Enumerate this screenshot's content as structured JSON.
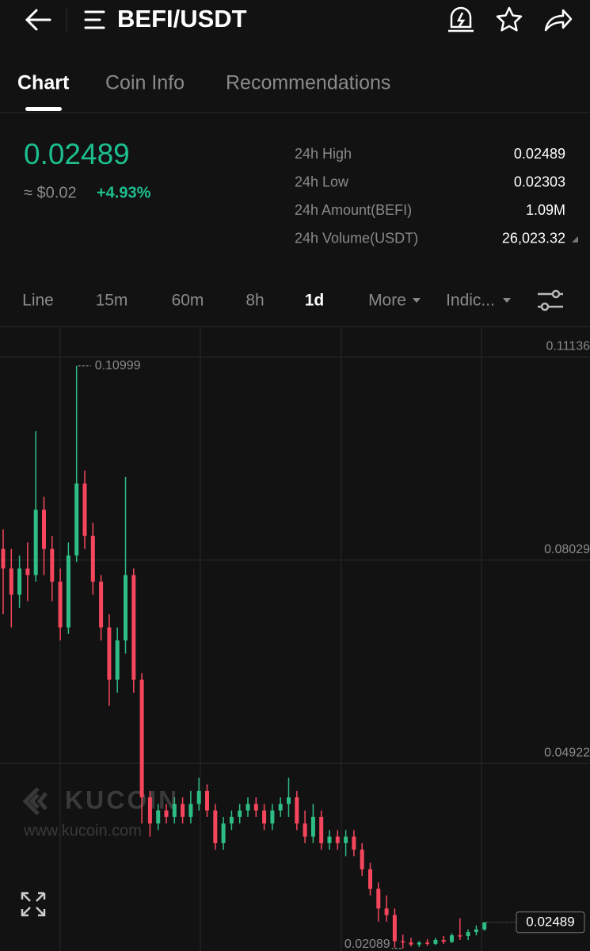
{
  "header": {
    "title": "BEFI/USDT"
  },
  "tabs": [
    "Chart",
    "Coin Info",
    "Recommendations"
  ],
  "ticker": {
    "price": "0.02489",
    "fiat": "≈ $0.02",
    "change": "+4.93%",
    "stats": [
      [
        "24h High",
        "0.02489"
      ],
      [
        "24h Low",
        "0.02303"
      ],
      [
        "24h Amount(BEFI)",
        "1.09M"
      ],
      [
        "24h Volume(USDT)",
        "26,023.32"
      ]
    ]
  },
  "intervals": [
    "Line",
    "15m",
    "60m",
    "8h",
    "1d",
    "More",
    "Indic..."
  ],
  "watermark": {
    "brand": "KUCOIN",
    "url": "www.kucoin.com"
  },
  "chart_data": {
    "type": "candlestick",
    "open": [
      0.082,
      0.079,
      0.075,
      0.079,
      0.078,
      0.088,
      0.082,
      0.077,
      0.07,
      0.081,
      0.092,
      0.084,
      0.077,
      0.07,
      0.062,
      0.068,
      0.078,
      0.062,
      0.044,
      0.04,
      0.042,
      0.041,
      0.043,
      0.041,
      0.043,
      0.045,
      0.042,
      0.037,
      0.04,
      0.041,
      0.042,
      0.043,
      0.042,
      0.04,
      0.042,
      0.043,
      0.044,
      0.04,
      0.038,
      0.041,
      0.037,
      0.038,
      0.037,
      0.038,
      0.036,
      0.033,
      0.03,
      0.027,
      0.026,
      0.022,
      0.0218,
      0.0215,
      0.0218,
      0.0216,
      0.0222,
      0.0219,
      0.0229,
      0.0228,
      0.0234,
      0.0238
    ],
    "high": [
      0.085,
      0.082,
      0.081,
      0.083,
      0.1,
      0.09,
      0.084,
      0.079,
      0.083,
      0.10999,
      0.094,
      0.086,
      0.078,
      0.072,
      0.07,
      0.093,
      0.079,
      0.063,
      0.045,
      0.043,
      0.043,
      0.044,
      0.044,
      0.045,
      0.047,
      0.046,
      0.043,
      0.041,
      0.042,
      0.043,
      0.044,
      0.044,
      0.043,
      0.043,
      0.044,
      0.047,
      0.045,
      0.042,
      0.043,
      0.042,
      0.039,
      0.039,
      0.039,
      0.039,
      0.037,
      0.034,
      0.031,
      0.029,
      0.027,
      0.023,
      0.0225,
      0.022,
      0.0223,
      0.0225,
      0.0228,
      0.0232,
      0.0255,
      0.0238,
      0.0244,
      0.02489
    ],
    "low": [
      0.072,
      0.07,
      0.073,
      0.074,
      0.077,
      0.078,
      0.074,
      0.068,
      0.069,
      0.08,
      0.082,
      0.075,
      0.068,
      0.058,
      0.06,
      0.066,
      0.06,
      0.04,
      0.038,
      0.039,
      0.04,
      0.04,
      0.04,
      0.04,
      0.042,
      0.041,
      0.036,
      0.036,
      0.039,
      0.04,
      0.041,
      0.041,
      0.039,
      0.039,
      0.041,
      0.041,
      0.039,
      0.037,
      0.037,
      0.036,
      0.036,
      0.036,
      0.035,
      0.035,
      0.032,
      0.029,
      0.025,
      0.025,
      0.021,
      0.02089,
      0.0212,
      0.0211,
      0.0213,
      0.0214,
      0.0216,
      0.0217,
      0.0222,
      0.0222,
      0.0229,
      0.0236
    ],
    "close": [
      0.079,
      0.075,
      0.079,
      0.078,
      0.088,
      0.082,
      0.077,
      0.07,
      0.081,
      0.092,
      0.084,
      0.077,
      0.07,
      0.062,
      0.068,
      0.078,
      0.062,
      0.044,
      0.04,
      0.042,
      0.041,
      0.043,
      0.041,
      0.043,
      0.045,
      0.042,
      0.037,
      0.04,
      0.041,
      0.042,
      0.043,
      0.042,
      0.04,
      0.042,
      0.043,
      0.044,
      0.04,
      0.038,
      0.041,
      0.037,
      0.038,
      0.037,
      0.038,
      0.036,
      0.033,
      0.03,
      0.027,
      0.026,
      0.022,
      0.0218,
      0.0215,
      0.0218,
      0.0216,
      0.0222,
      0.0219,
      0.0229,
      0.0228,
      0.0234,
      0.0238,
      0.02489
    ],
    "up_color": "#2ebd85",
    "down_color": "#f6465d",
    "ylim": [
      0.0205,
      0.1159
    ],
    "yticks": [
      0.11136,
      0.08029,
      0.04922
    ],
    "grid": true,
    "max_marker": 0.10999,
    "min_marker": 0.02089,
    "last_price": 0.02489
  }
}
